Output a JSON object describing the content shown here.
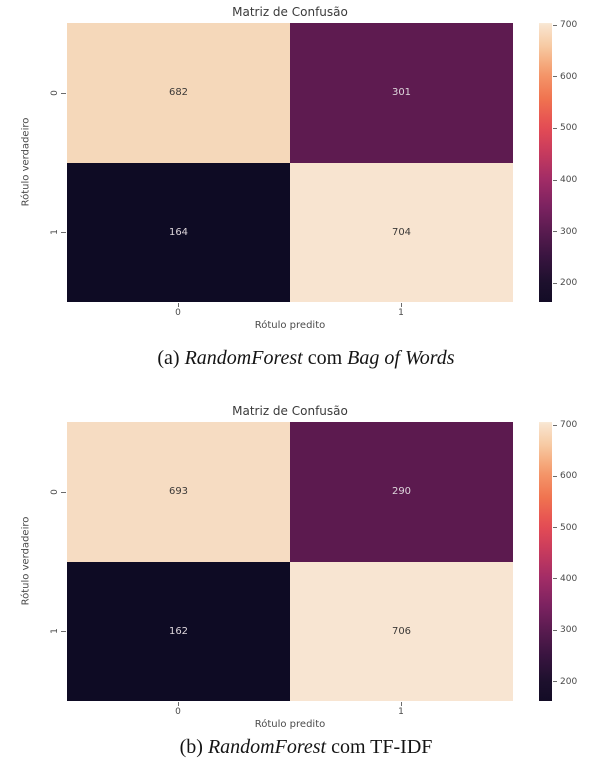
{
  "chart_data": [
    {
      "type": "heatmap",
      "title": "Matriz de Confusão",
      "xlabel": "Rótulo predito",
      "ylabel": "Rótulo verdadeiro",
      "x_categories": [
        "0",
        "1"
      ],
      "y_categories": [
        "0",
        "1"
      ],
      "values": [
        [
          682,
          301
        ],
        [
          164,
          704
        ]
      ],
      "vmin": 164,
      "vmax": 704,
      "colorbar_ticks": [
        700,
        600,
        500,
        400,
        300,
        200
      ],
      "colormap": "rocket",
      "legend_position": "right-colorbar",
      "grid": false,
      "caption": "(a) RandomForest com Bag of Words"
    },
    {
      "type": "heatmap",
      "title": "Matriz de Confusão",
      "xlabel": "Rótulo predito",
      "ylabel": "Rótulo verdadeiro",
      "x_categories": [
        "0",
        "1"
      ],
      "y_categories": [
        "0",
        "1"
      ],
      "values": [
        [
          693,
          290
        ],
        [
          162,
          706
        ]
      ],
      "vmin": 162,
      "vmax": 706,
      "colorbar_ticks": [
        700,
        600,
        500,
        400,
        300,
        200
      ],
      "colormap": "rocket",
      "legend_position": "right-colorbar",
      "grid": false,
      "caption": "(b) RandomForest com TF-IDF"
    }
  ],
  "captions": [
    {
      "index": "(a)",
      "model": "RandomForest",
      "connector": "com",
      "method": "Bag of Words"
    },
    {
      "index": "(b)",
      "model": "RandomForest",
      "connector": "com",
      "method": "TF-IDF"
    }
  ],
  "style": {
    "cells": [
      [
        [
          {
            "bg": "#f5d8ba",
            "fg": "#3d3a38"
          },
          {
            "bg": "#5e1b50",
            "fg": "#ded7dc"
          }
        ],
        [
          {
            "bg": "#0e0b24",
            "fg": "#ded7dc"
          },
          {
            "bg": "#f8e4d0",
            "fg": "#3d3a38"
          }
        ]
      ],
      [
        [
          {
            "bg": "#f6dcc2",
            "fg": "#3d3a38"
          },
          {
            "bg": "#5c1a4f",
            "fg": "#ded7dc"
          }
        ],
        [
          {
            "bg": "#0e0b24",
            "fg": "#ded7dc"
          },
          {
            "bg": "#f8e5d2",
            "fg": "#3d3a38"
          }
        ]
      ]
    ],
    "colorbar_gradient": [
      {
        "pct": "0%",
        "color": "#f9ead8"
      },
      {
        "pct": "1%",
        "color": "#f8e3cd"
      },
      {
        "pct": "8%",
        "color": "#f7cba4"
      },
      {
        "pct": "15%",
        "color": "#f5a87b"
      },
      {
        "pct": "19%",
        "color": "#f49468"
      },
      {
        "pct": "27%",
        "color": "#f07450"
      },
      {
        "pct": "34%",
        "color": "#e85852"
      },
      {
        "pct": "38%",
        "color": "#e24b55"
      },
      {
        "pct": "45%",
        "color": "#cc3d5c"
      },
      {
        "pct": "56%",
        "color": "#a22c66"
      },
      {
        "pct": "66%",
        "color": "#7b2260"
      },
      {
        "pct": "75%",
        "color": "#581b4f"
      },
      {
        "pct": "84%",
        "color": "#38143f"
      },
      {
        "pct": "93%",
        "color": "#1d102d"
      },
      {
        "pct": "100%",
        "color": "#130c26"
      }
    ],
    "page_background": "#ffffff",
    "tick_color": "#6b6b6b",
    "text_color": "#4a4a4a"
  }
}
